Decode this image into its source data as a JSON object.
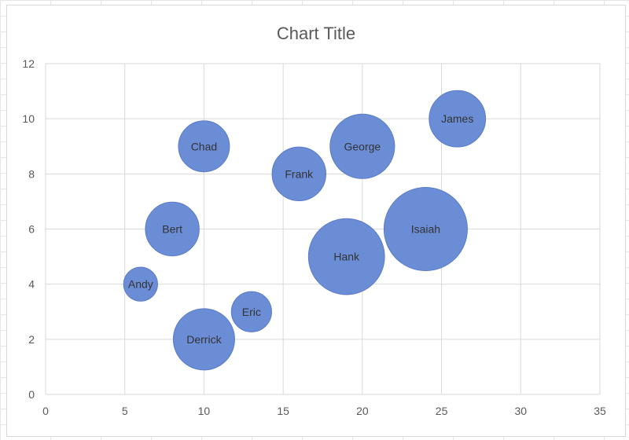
{
  "colors": {
    "bubble_fill": "#6b8dd6",
    "bubble_stroke": "#5a7cc6",
    "gridline": "#d9d9d9",
    "axis_text": "#595959"
  },
  "chart_data": {
    "type": "bubble",
    "title": "Chart Title",
    "xlabel": "",
    "ylabel": "",
    "xlim": [
      0,
      35
    ],
    "ylim": [
      0,
      12
    ],
    "x_ticks": [
      "0",
      "5",
      "10",
      "15",
      "20",
      "25",
      "30",
      "35"
    ],
    "y_ticks": [
      "0",
      "2",
      "4",
      "6",
      "8",
      "10",
      "12"
    ],
    "grid": true,
    "legend": "none",
    "points": [
      {
        "label": "Andy",
        "x": 6,
        "y": 4,
        "size": 2
      },
      {
        "label": "Bert",
        "x": 8,
        "y": 6,
        "size": 5
      },
      {
        "label": "Chad",
        "x": 10,
        "y": 9,
        "size": 4.5
      },
      {
        "label": "Derrick",
        "x": 10,
        "y": 2,
        "size": 6.5
      },
      {
        "label": "Eric",
        "x": 13,
        "y": 3,
        "size": 2.8
      },
      {
        "label": "Frank",
        "x": 16,
        "y": 8,
        "size": 5
      },
      {
        "label": "George",
        "x": 20,
        "y": 9,
        "size": 7.2
      },
      {
        "label": "Hank",
        "x": 19,
        "y": 5,
        "size": 10
      },
      {
        "label": "Isaiah",
        "x": 24,
        "y": 6,
        "size": 12
      },
      {
        "label": "James",
        "x": 26,
        "y": 10,
        "size": 5.5
      }
    ]
  }
}
